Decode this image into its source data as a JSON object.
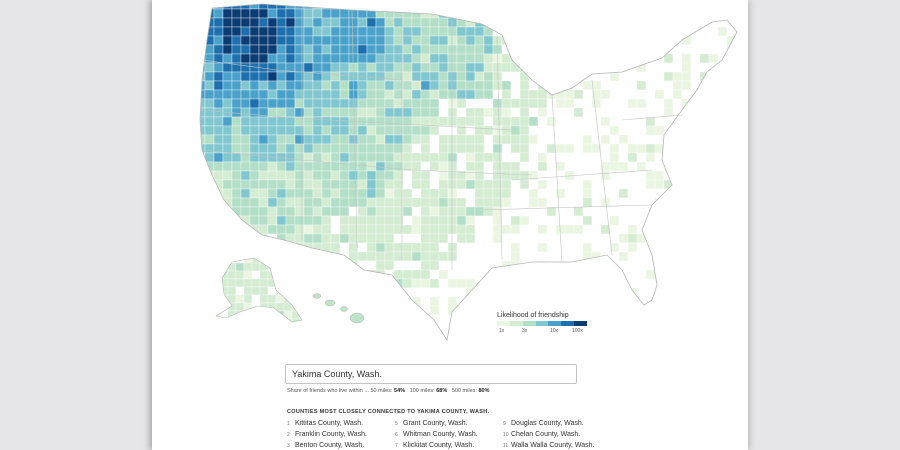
{
  "map": {
    "palette": [
      "#eaf5e2",
      "#d3ecd2",
      "#b3dfc9",
      "#81c7cf",
      "#4aa2cb",
      "#1d6fae",
      "#0b3c73"
    ],
    "county_border": "#ffffff",
    "state_border": "#b5b5b5"
  },
  "legend": {
    "title": "Likelihood of friendship",
    "ticks": [
      "1x",
      "3x",
      "10x",
      "100x"
    ]
  },
  "search": {
    "value": "Yakima County, Wash."
  },
  "share": {
    "prefix": "Share of friends who live within ...",
    "items": [
      {
        "label": "50 miles:",
        "value": "54%"
      },
      {
        "label": "100 miles:",
        "value": "68%"
      },
      {
        "label": "500 miles:",
        "value": "80%"
      }
    ]
  },
  "list": {
    "heading": "COUNTIES MOST CLOSELY CONNECTED TO YAKIMA COUNTY, WASH.",
    "columns": [
      [
        {
          "num": "1",
          "name": "Kittitas County, Wash."
        },
        {
          "num": "2",
          "name": "Franklin County, Wash."
        },
        {
          "num": "3",
          "name": "Benton County, Wash."
        }
      ],
      [
        {
          "num": "5",
          "name": "Grant County, Wash."
        },
        {
          "num": "6",
          "name": "Whitman County, Wash."
        },
        {
          "num": "7",
          "name": "Klickitat County, Wash."
        }
      ],
      [
        {
          "num": "9",
          "name": "Douglas County, Wash."
        },
        {
          "num": "10",
          "name": "Chelan County, Wash."
        },
        {
          "num": "11",
          "name": "Walla Walla County, Wash."
        }
      ]
    ]
  }
}
